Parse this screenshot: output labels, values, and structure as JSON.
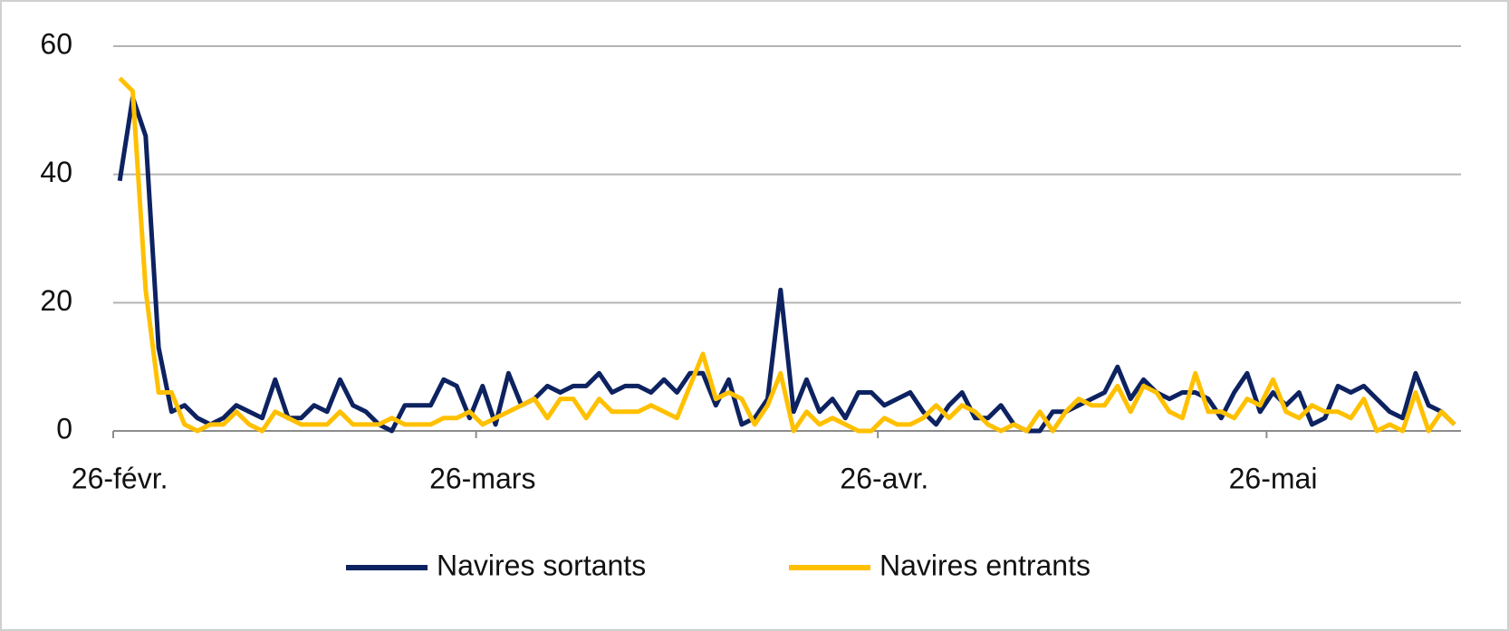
{
  "chart_data": {
    "type": "line",
    "categories": [
      "26-févr.",
      null,
      null,
      null,
      null,
      null,
      null,
      null,
      null,
      null,
      null,
      null,
      null,
      null,
      null,
      null,
      null,
      null,
      null,
      null,
      null,
      null,
      null,
      null,
      null,
      null,
      null,
      null,
      "26-mars",
      null,
      null,
      null,
      null,
      null,
      null,
      null,
      null,
      null,
      null,
      null,
      null,
      null,
      null,
      null,
      null,
      null,
      null,
      null,
      null,
      null,
      null,
      null,
      null,
      null,
      null,
      null,
      null,
      null,
      null,
      "26-avr.",
      null,
      null,
      null,
      null,
      null,
      null,
      null,
      null,
      null,
      null,
      null,
      null,
      null,
      null,
      null,
      null,
      null,
      null,
      null,
      null,
      null,
      null,
      null,
      null,
      null,
      null,
      null,
      null,
      null,
      "26-mai",
      null,
      null,
      null,
      null,
      null,
      null,
      null,
      null,
      null,
      null,
      null,
      null,
      null,
      null
    ],
    "series": [
      {
        "name": "Navires sortants",
        "color": "#0d2260",
        "values": [
          39,
          52,
          46,
          13,
          3,
          4,
          2,
          1,
          2,
          4,
          3,
          2,
          8,
          2,
          2,
          4,
          3,
          8,
          4,
          3,
          1,
          0,
          4,
          4,
          4,
          8,
          7,
          2,
          7,
          1,
          9,
          4,
          5,
          7,
          6,
          7,
          7,
          9,
          6,
          7,
          7,
          6,
          8,
          6,
          9,
          9,
          4,
          8,
          1,
          2,
          5,
          22,
          3,
          8,
          3,
          5,
          2,
          6,
          6,
          4,
          5,
          6,
          3,
          1,
          4,
          6,
          2,
          2,
          4,
          1,
          0,
          0,
          3,
          3,
          4,
          5,
          6,
          10,
          5,
          8,
          6,
          5,
          6,
          6,
          5,
          2,
          6,
          9,
          3,
          6,
          4,
          6,
          1,
          2,
          7,
          6,
          7,
          5,
          3,
          2,
          9,
          4,
          3,
          1
        ]
      },
      {
        "name": "Navires entrants",
        "color": "#ffc000",
        "values": [
          55,
          53,
          22,
          6,
          6,
          1,
          0,
          1,
          1,
          3,
          1,
          0,
          3,
          2,
          1,
          1,
          1,
          3,
          1,
          1,
          1,
          2,
          1,
          1,
          1,
          2,
          2,
          3,
          1,
          2,
          3,
          4,
          5,
          2,
          5,
          5,
          2,
          5,
          3,
          3,
          3,
          4,
          3,
          2,
          7,
          12,
          5,
          6,
          5,
          1,
          4,
          9,
          0,
          3,
          1,
          2,
          1,
          0,
          0,
          2,
          1,
          1,
          2,
          4,
          2,
          4,
          3,
          1,
          0,
          1,
          0,
          3,
          0,
          3,
          5,
          4,
          4,
          7,
          3,
          7,
          6,
          3,
          2,
          9,
          3,
          3,
          2,
          5,
          4,
          8,
          3,
          2,
          4,
          3,
          3,
          2,
          5,
          0,
          1,
          0,
          6,
          0,
          3,
          1
        ]
      }
    ],
    "ylim": [
      0,
      60
    ],
    "yticks": [
      0,
      20,
      40,
      60
    ],
    "grid": true
  }
}
